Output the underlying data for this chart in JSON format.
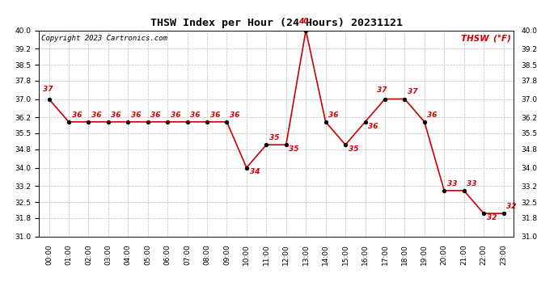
{
  "title": "THSW Index per Hour (24 Hours) 20231121",
  "copyright": "Copyright 2023 Cartronics.com",
  "legend_label": "THSW (°F)",
  "line_color": "#cc0000",
  "marker_color": "black",
  "background_color": "white",
  "grid_color": "#bbbbbb",
  "hours": [
    0,
    1,
    2,
    3,
    4,
    5,
    6,
    7,
    8,
    9,
    10,
    11,
    12,
    13,
    14,
    15,
    16,
    17,
    18,
    19,
    20,
    21,
    22,
    23
  ],
  "values": [
    37,
    36,
    36,
    36,
    36,
    36,
    36,
    36,
    36,
    36,
    34,
    35,
    35,
    40,
    36,
    35,
    36,
    37,
    37,
    36,
    33,
    33,
    32,
    32
  ],
  "point_labels": [
    "37",
    "36",
    "36",
    "36",
    "36",
    "36",
    "36",
    "36",
    "36",
    "36",
    "34",
    "35",
    "35",
    "40",
    "36",
    "35",
    "36",
    "37",
    "37",
    "36",
    "33",
    "33",
    "32",
    "32"
  ],
  "ylim_min": 31.0,
  "ylim_max": 40.0,
  "yticks": [
    31.0,
    31.8,
    32.5,
    33.2,
    34.0,
    34.8,
    35.5,
    36.2,
    37.0,
    37.8,
    38.5,
    39.2,
    40.0
  ],
  "label_offsets_x": [
    -0.3,
    0.15,
    0.15,
    0.15,
    0.15,
    0.15,
    0.15,
    0.15,
    0.15,
    0.15,
    0.15,
    0.15,
    0.15,
    -0.1,
    0.15,
    0.15,
    0.15,
    -0.4,
    0.15,
    0.15,
    0.15,
    0.15,
    0.15,
    0.15
  ],
  "label_offsets_y": [
    0.25,
    0.15,
    0.15,
    0.15,
    0.15,
    0.15,
    0.15,
    0.15,
    0.15,
    0.15,
    -0.35,
    0.15,
    -0.35,
    0.22,
    0.15,
    -0.35,
    -0.35,
    0.22,
    0.15,
    0.15,
    0.15,
    0.15,
    -0.35,
    0.15
  ],
  "label_ha": [
    "left",
    "left",
    "left",
    "left",
    "left",
    "left",
    "left",
    "left",
    "left",
    "left",
    "left",
    "left",
    "left",
    "center",
    "left",
    "left",
    "left",
    "left",
    "left",
    "left",
    "left",
    "left",
    "left",
    "left"
  ]
}
